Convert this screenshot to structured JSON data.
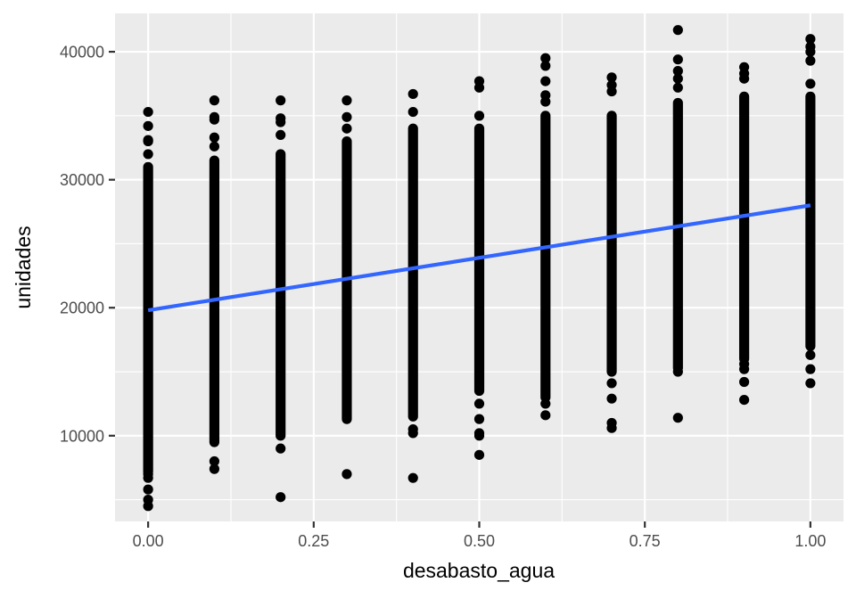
{
  "chart_data": {
    "type": "scatter",
    "title": "",
    "xlabel": "desabasto_agua",
    "ylabel": "unidades",
    "xlim": [
      -0.05,
      1.05
    ],
    "ylim": [
      3300,
      43000
    ],
    "x_ticks": [
      0.0,
      0.25,
      0.5,
      0.75,
      1.0
    ],
    "x_tick_labels": [
      "0.00",
      "0.25",
      "0.50",
      "0.75",
      "1.00"
    ],
    "y_ticks": [
      10000,
      20000,
      30000,
      40000
    ],
    "y_tick_labels": [
      "10000",
      "20000",
      "30000",
      "40000"
    ],
    "grid": true,
    "legend": "none",
    "panel_background": "#ebebeb",
    "point_color": "#000000",
    "fit_line_color": "#3366ff",
    "columns": [
      {
        "x": 0.0,
        "dense_range": [
          7200,
          31000
        ],
        "outliers": [
          35300,
          34200,
          33100,
          33000,
          32000,
          7000,
          6700,
          5800,
          5000,
          4500
        ]
      },
      {
        "x": 0.1,
        "dense_range": [
          9500,
          31500
        ],
        "outliers": [
          36200,
          34900,
          34700,
          33300,
          32600,
          8000,
          7400
        ]
      },
      {
        "x": 0.2,
        "dense_range": [
          10000,
          32000
        ],
        "outliers": [
          36200,
          34800,
          34500,
          33500,
          9000,
          5200
        ]
      },
      {
        "x": 0.3,
        "dense_range": [
          11300,
          33000
        ],
        "outliers": [
          36200,
          34900,
          34000,
          7000
        ]
      },
      {
        "x": 0.4,
        "dense_range": [
          11500,
          34000
        ],
        "outliers": [
          36700,
          35300,
          10500,
          10200,
          6700
        ]
      },
      {
        "x": 0.5,
        "dense_range": [
          13500,
          34000
        ],
        "outliers": [
          37700,
          37200,
          35000,
          12500,
          11300,
          10200,
          10000,
          8500
        ]
      },
      {
        "x": 0.6,
        "dense_range": [
          13000,
          35000
        ],
        "outliers": [
          39500,
          38900,
          37700,
          36600,
          36100,
          12500,
          11600
        ]
      },
      {
        "x": 0.7,
        "dense_range": [
          15000,
          35000
        ],
        "outliers": [
          38000,
          37400,
          36900,
          14100,
          12900,
          11000,
          10600
        ]
      },
      {
        "x": 0.8,
        "dense_range": [
          15300,
          36000
        ],
        "outliers": [
          41700,
          39400,
          38500,
          37900,
          37200,
          15000,
          11400
        ]
      },
      {
        "x": 0.9,
        "dense_range": [
          16000,
          36500
        ],
        "outliers": [
          38800,
          38300,
          37900,
          15600,
          15200,
          14200,
          12800
        ]
      },
      {
        "x": 1.0,
        "dense_range": [
          17000,
          36500
        ],
        "outliers": [
          41000,
          40400,
          40000,
          39300,
          37500,
          16300,
          15200,
          14100
        ]
      }
    ],
    "fit_line": {
      "method": "lm",
      "x": [
        0.0,
        1.0
      ],
      "y": [
        19800,
        28000
      ]
    }
  }
}
